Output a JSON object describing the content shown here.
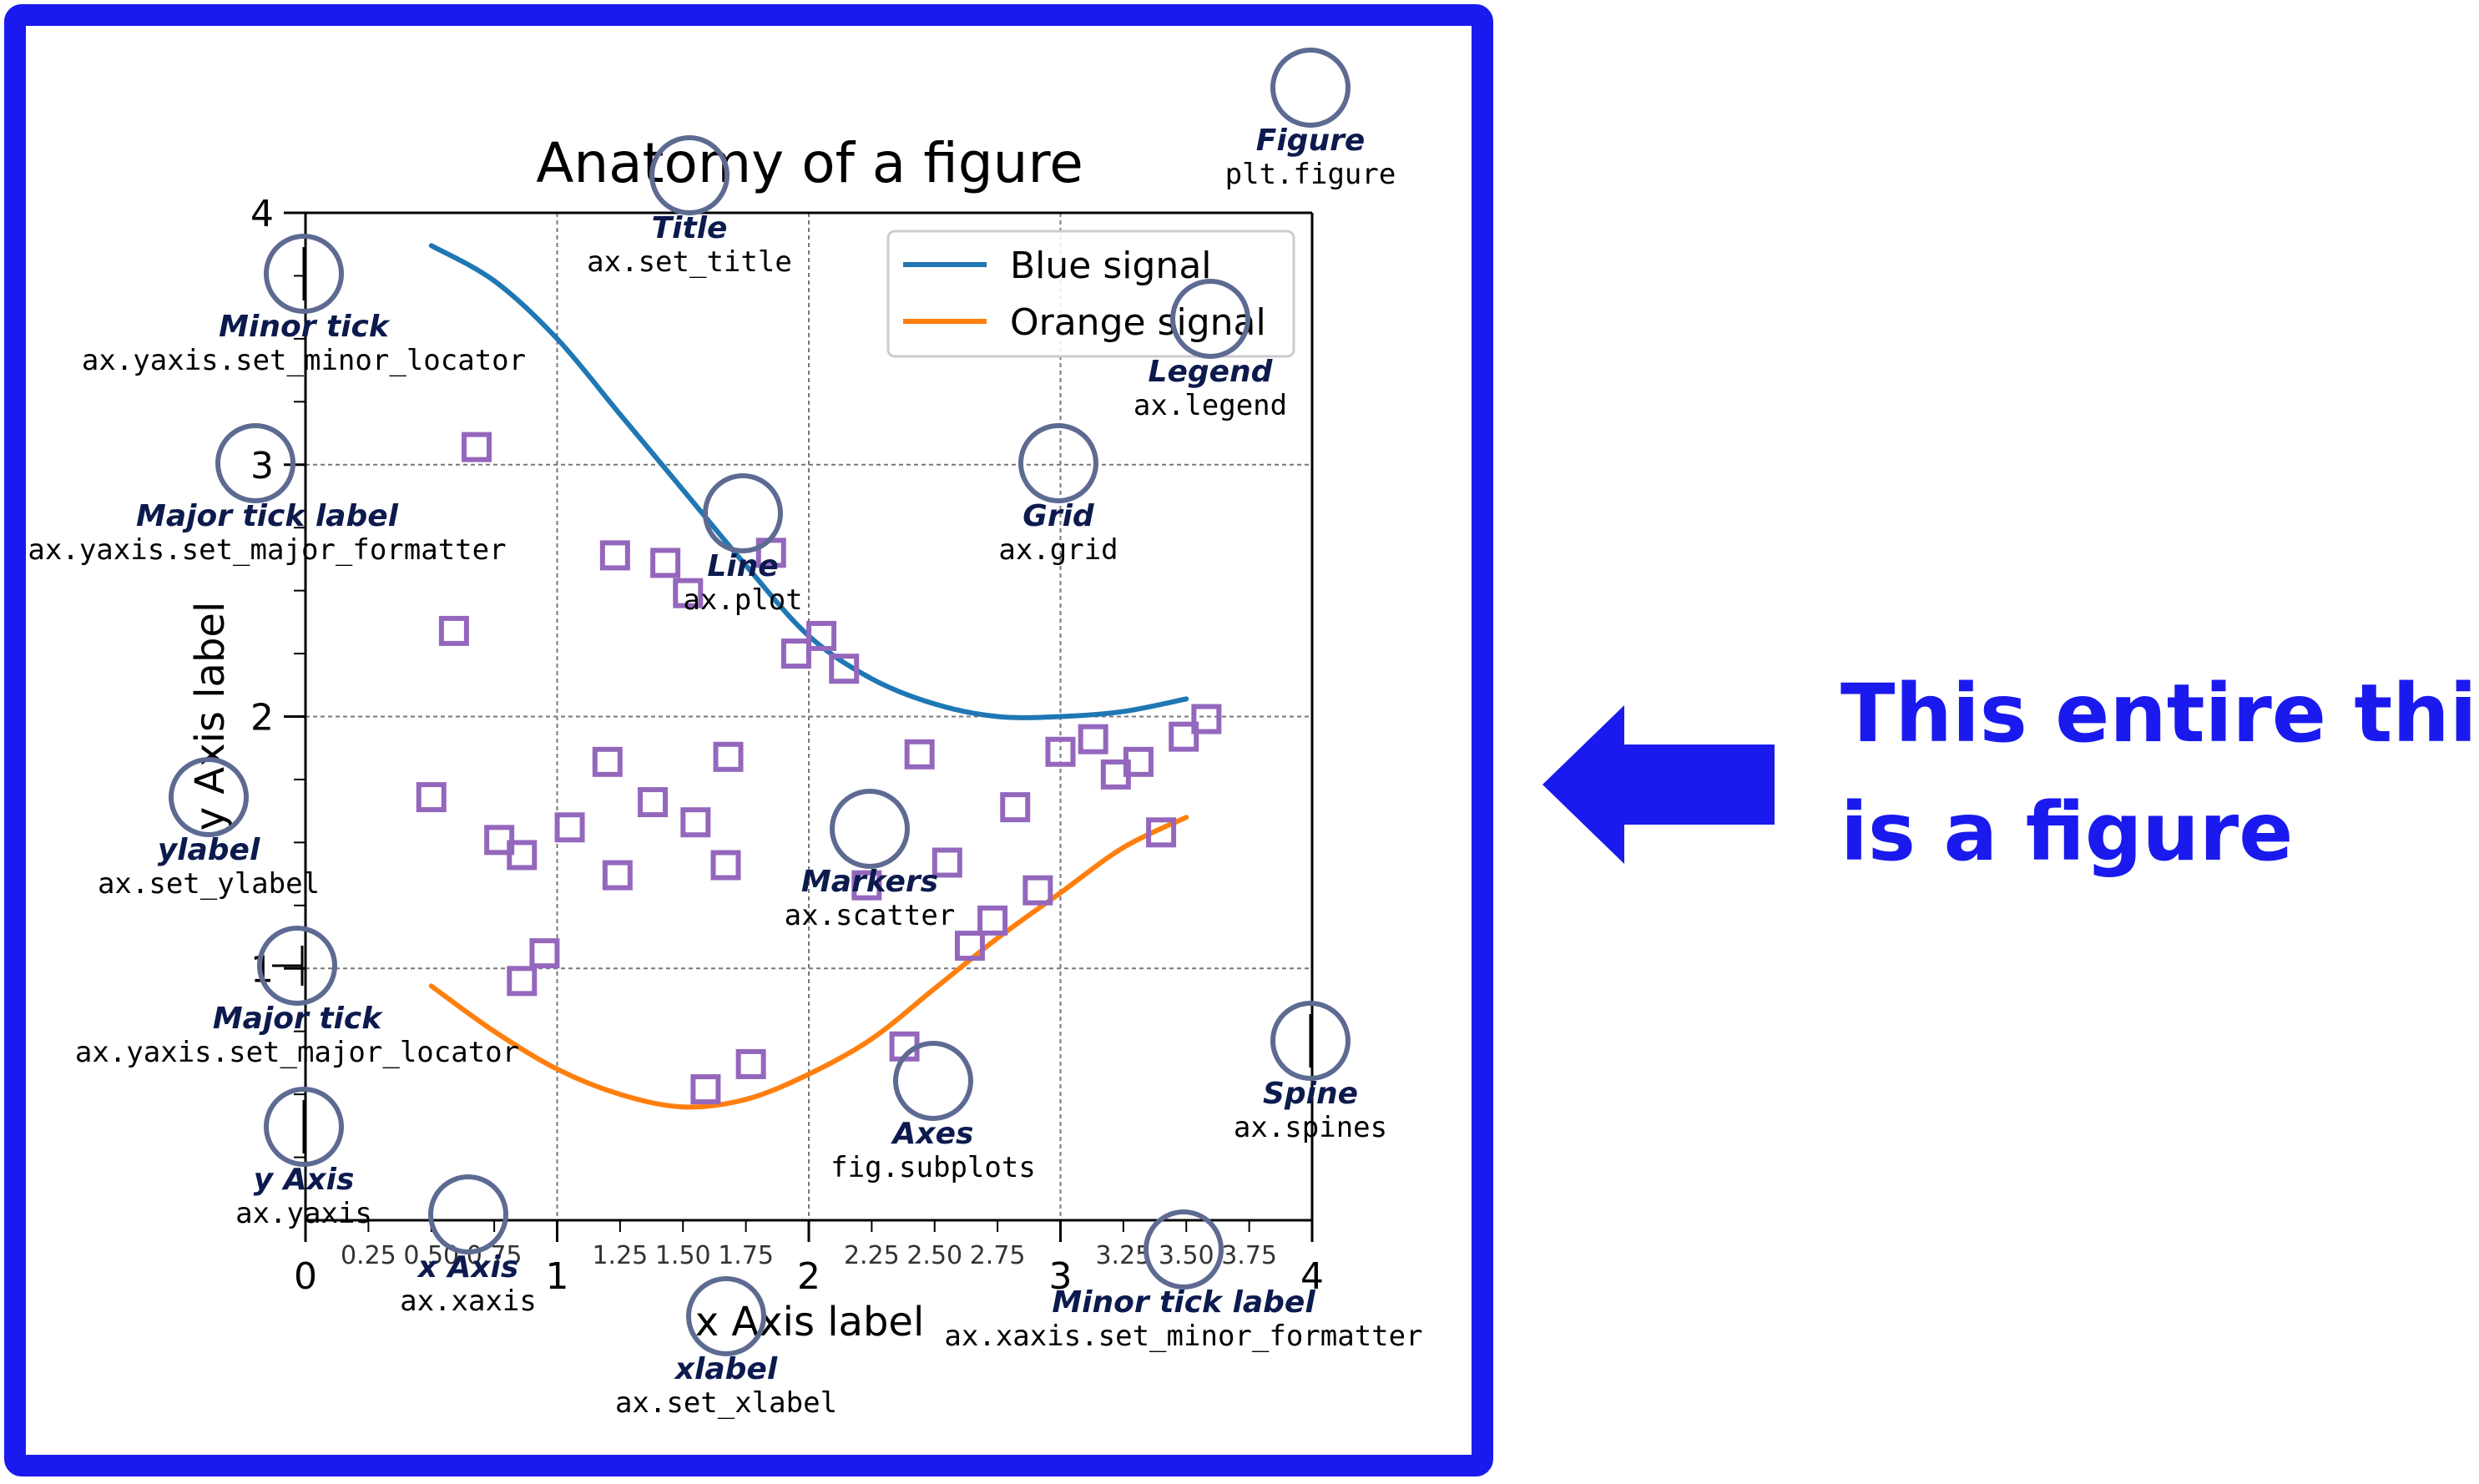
{
  "figure": {
    "title": "Anatomy of a figure",
    "xlabel": "x Axis label",
    "ylabel": "y Axis label",
    "legend": [
      "Blue signal",
      "Orange signal"
    ]
  },
  "chart_data": {
    "type": "line",
    "title": "Anatomy of a figure",
    "xlabel": "x Axis label",
    "ylabel": "y Axis label",
    "xlim": [
      0,
      4
    ],
    "ylim": [
      0,
      4
    ],
    "grid": true,
    "legend_position": "top-right",
    "major_x_ticks": [
      "0",
      "1",
      "2",
      "3",
      "4"
    ],
    "minor_x_ticks": [
      "0.25",
      "0.50",
      "0.75",
      "1.25",
      "1.50",
      "1.75",
      "2.25",
      "2.50",
      "2.75",
      "3.25",
      "3.50",
      "3.75"
    ],
    "major_y_ticks": [
      "1",
      "2",
      "3",
      "4"
    ],
    "series": [
      {
        "name": "Blue signal",
        "kind": "line",
        "x": [
          0.5,
          0.75,
          1.0,
          1.25,
          1.5,
          1.75,
          2.0,
          2.25,
          2.5,
          2.75,
          3.0,
          3.25,
          3.5
        ],
        "y": [
          3.87,
          3.73,
          3.5,
          3.2,
          2.9,
          2.6,
          2.32,
          2.15,
          2.05,
          2.0,
          2.0,
          2.02,
          2.07
        ]
      },
      {
        "name": "Orange signal",
        "kind": "line",
        "x": [
          0.5,
          0.75,
          1.0,
          1.25,
          1.5,
          1.75,
          2.0,
          2.25,
          2.5,
          2.75,
          3.0,
          3.25,
          3.5
        ],
        "y": [
          0.93,
          0.75,
          0.6,
          0.5,
          0.45,
          0.48,
          0.58,
          0.72,
          0.92,
          1.12,
          1.3,
          1.48,
          1.6
        ]
      },
      {
        "kind": "scatter",
        "x": [
          0.68,
          0.59,
          0.5,
          0.77,
          0.86,
          1.05,
          1.24,
          1.43,
          1.52,
          1.68,
          1.55,
          1.38,
          0.95,
          1.23,
          1.2,
          1.67,
          1.85,
          2.05,
          2.14,
          1.95,
          2.23,
          2.44,
          2.55,
          2.64,
          2.73,
          2.82,
          2.91,
          3.0,
          3.13,
          3.22,
          3.31,
          3.4,
          3.49,
          3.58,
          2.38,
          1.59,
          1.77,
          0.86
        ],
        "y": [
          3.07,
          2.34,
          1.68,
          1.51,
          1.45,
          1.56,
          1.37,
          2.61,
          2.49,
          1.84,
          1.58,
          1.66,
          1.06,
          2.64,
          1.82,
          1.41,
          2.65,
          2.32,
          2.19,
          2.25,
          1.33,
          1.85,
          1.42,
          1.09,
          1.19,
          1.64,
          1.31,
          1.86,
          1.91,
          1.77,
          1.82,
          1.54,
          1.92,
          1.99,
          0.69,
          0.52,
          0.62,
          0.95
        ]
      }
    ]
  },
  "annotations": [
    {
      "title": "Figure",
      "code": "plt.figure"
    },
    {
      "title": "Title",
      "code": "ax.set_title"
    },
    {
      "title": "Legend",
      "code": "ax.legend"
    },
    {
      "title": "Minor tick",
      "code": "ax.yaxis.set_minor_locator"
    },
    {
      "title": "Major tick label",
      "code": "ax.yaxis.set_major_formatter"
    },
    {
      "title": "Line",
      "code": "ax.plot"
    },
    {
      "title": "Grid",
      "code": "ax.grid"
    },
    {
      "title": "ylabel",
      "code": "ax.set_ylabel"
    },
    {
      "title": "Markers",
      "code": "ax.scatter"
    },
    {
      "title": "Major tick",
      "code": "ax.yaxis.set_major_locator"
    },
    {
      "title": "Spine",
      "code": "ax.spines"
    },
    {
      "title": "Axes",
      "code": "fig.subplots"
    },
    {
      "title": "y Axis",
      "code": "ax.yaxis"
    },
    {
      "title": "x Axis",
      "code": "ax.xaxis"
    },
    {
      "title": "Minor tick label",
      "code": "ax.xaxis.set_minor_formatter"
    },
    {
      "title": "xlabel",
      "code": "ax.set_xlabel"
    }
  ],
  "callout": {
    "line1": "This entire thing",
    "line2": "is a figure",
    "color": "#1a1aee"
  },
  "colors": {
    "frame": "#1a1aee",
    "blue_signal": "#1f77b4",
    "orange_signal": "#ff7f0e",
    "markers": "#9467bd",
    "annotation_circle": "#5d6a92",
    "annotation_text": "#0c1a4e"
  }
}
